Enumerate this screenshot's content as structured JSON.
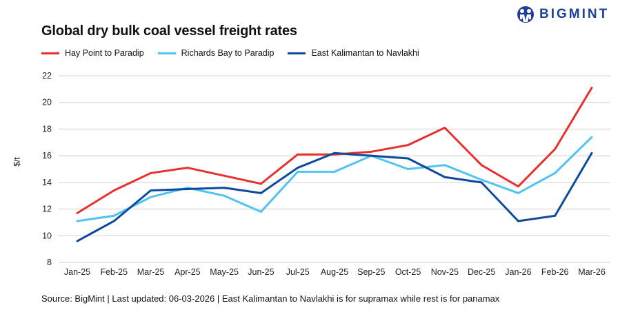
{
  "brand": {
    "name": "BIGMINT",
    "color": "#1d3f9a"
  },
  "chart_data": {
    "type": "line",
    "title": "Global dry bulk coal vessel freight rates",
    "xlabel": "",
    "ylabel": "$/t",
    "ylim": [
      8,
      22
    ],
    "yticks": [
      8,
      10,
      12,
      14,
      16,
      18,
      20,
      22
    ],
    "grid": true,
    "legend_position": "top-left",
    "categories": [
      "Jan-25",
      "Feb-25",
      "Mar-25",
      "Apr-25",
      "May-25",
      "Jun-25",
      "Jul-25",
      "Aug-25",
      "Sep-25",
      "Oct-25",
      "Nov-25",
      "Dec-25",
      "Jan-26",
      "Feb-26",
      "Mar-26"
    ],
    "series": [
      {
        "name": "Hay Point to Paradip",
        "color": "#e8312f",
        "values": [
          11.7,
          13.4,
          14.7,
          15.1,
          14.5,
          13.9,
          16.1,
          16.1,
          16.3,
          16.8,
          18.1,
          15.3,
          13.7,
          16.5,
          21.1
        ]
      },
      {
        "name": "Richards Bay to Paradip",
        "color": "#4fc3f2",
        "values": [
          11.1,
          11.5,
          12.9,
          13.6,
          13.0,
          11.8,
          14.8,
          14.8,
          16.0,
          15.0,
          15.3,
          14.2,
          13.2,
          14.7,
          17.4
        ]
      },
      {
        "name": "East Kalimantan to Navlakhi",
        "color": "#0d4a9e",
        "values": [
          9.6,
          11.1,
          13.4,
          13.5,
          13.6,
          13.2,
          15.1,
          16.2,
          16.0,
          15.8,
          14.4,
          14.0,
          11.1,
          11.5,
          16.2
        ]
      }
    ],
    "source": "Source: BigMint | Last updated: 06-03-2026 | East Kalimantan to Navlakhi is for supramax while rest is for panamax"
  }
}
